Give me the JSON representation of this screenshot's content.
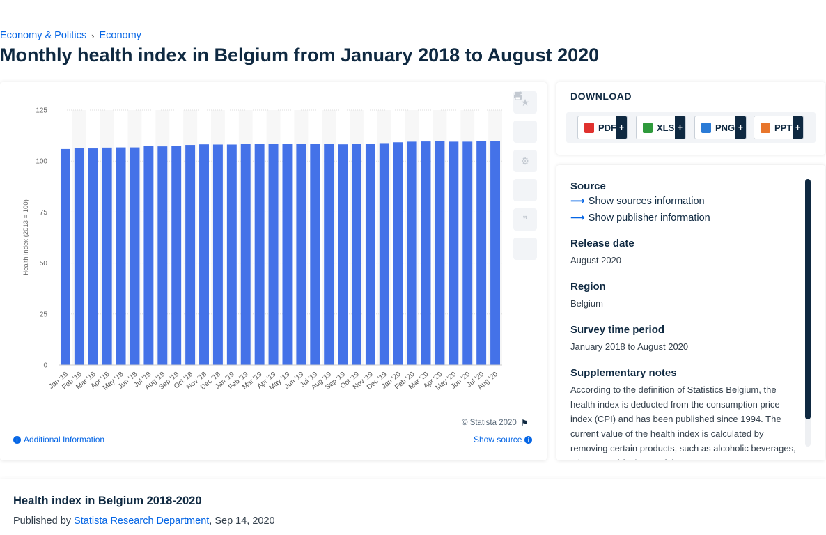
{
  "breadcrumb": {
    "parent": "Economy & Politics",
    "separator": "›",
    "current": "Economy"
  },
  "page_title": "Monthly health index in Belgium from January 2018 to August 2020",
  "chart_card": {
    "copyright": "© Statista 2020",
    "additional_info": "Additional Information",
    "show_source": "Show source",
    "tools": [
      "star-icon",
      "bell-icon",
      "gear-icon",
      "share-icon",
      "quote-icon",
      "print-icon"
    ]
  },
  "download": {
    "title": "DOWNLOAD",
    "buttons": [
      {
        "label": "PDF",
        "color": "#e0312e"
      },
      {
        "label": "XLS",
        "color": "#2f9a3c"
      },
      {
        "label": "PNG",
        "color": "#2b7bd6"
      },
      {
        "label": "PPT",
        "color": "#e8762c"
      }
    ],
    "plus": "+"
  },
  "info": {
    "source_label": "Source",
    "show_sources": "Show sources information",
    "show_publisher": "Show publisher information",
    "release_label": "Release date",
    "release_value": "August 2020",
    "region_label": "Region",
    "region_value": "Belgium",
    "period_label": "Survey time period",
    "period_value": "January 2018 to August 2020",
    "notes_label": "Supplementary notes",
    "notes_value": "According to the definition of Statistics Belgium, the health index is deducted from the consumption price index (CPI) and has been published since 1994. The current value of the health index is calculated by removing certain products, such as alcoholic beverages, tobacco and fuels out of the"
  },
  "bottom": {
    "title": "Health index in Belgium 2018-2020",
    "published_by": "Published by",
    "publisher": "Statista Research Department",
    "date": ", Sep 14, 2020"
  },
  "chart_data": {
    "type": "bar",
    "ylabel": "Health index (2013 = 100)",
    "ylim": [
      0,
      125
    ],
    "yticks": [
      0,
      25,
      50,
      75,
      100,
      125
    ],
    "grid": true,
    "bar_color": "#4472e8",
    "categories": [
      "Jan '18",
      "Feb '18",
      "Mar '18",
      "Apr '18",
      "May '18",
      "Jun '18",
      "Jul '18",
      "Aug '18",
      "Sep '18",
      "Oct '18",
      "Nov '18",
      "Dec '18",
      "Jan '19",
      "Feb '19",
      "Mar '19",
      "Apr '19",
      "May '19",
      "Jun '19",
      "Jul '19",
      "Aug '19",
      "Sep '19",
      "Oct '19",
      "Nov '19",
      "Dec '19",
      "Jan '20",
      "Feb '20",
      "Mar '20",
      "Apr '20",
      "May '20",
      "Jun '20",
      "Jul '20",
      "Aug '20"
    ],
    "values": [
      105.9,
      106.3,
      106.2,
      106.6,
      106.7,
      106.7,
      107.3,
      107.2,
      107.3,
      107.9,
      108.2,
      108.1,
      108.1,
      108.5,
      108.6,
      108.6,
      108.6,
      108.6,
      108.5,
      108.5,
      108.2,
      108.5,
      108.5,
      108.8,
      109.2,
      109.5,
      109.6,
      109.9,
      109.5,
      109.5,
      109.8,
      109.8
    ]
  }
}
